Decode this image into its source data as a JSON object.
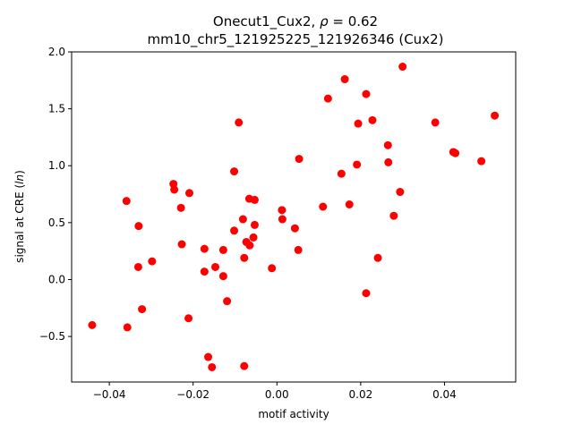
{
  "chart_data": {
    "type": "scatter",
    "title_line1": "Onecut1_Cux2, ρ = 0.62",
    "title_line2": "mm10_chr5_121925225_121926346 (Cux2)",
    "xlabel": "motif activity",
    "ylabel": "signal at CRE (ln)",
    "xlim": [
      -0.049,
      0.057
    ],
    "ylim": [
      -0.9,
      2.0
    ],
    "xticks": [
      -0.04,
      -0.02,
      0.0,
      0.02,
      0.04
    ],
    "xtick_labels": [
      "−0.04",
      "−0.02",
      "0.00",
      "0.02",
      "0.04"
    ],
    "yticks": [
      -0.5,
      0.0,
      0.5,
      1.0,
      1.5,
      2.0
    ],
    "ytick_labels": [
      "−0.5",
      "0.0",
      "0.5",
      "1.0",
      "1.5",
      "2.0"
    ],
    "grid": false,
    "marker_color": "#ff0000",
    "points": [
      {
        "x": -0.0441,
        "y": -0.4
      },
      {
        "x": -0.0359,
        "y": 0.69
      },
      {
        "x": -0.0357,
        "y": -0.42
      },
      {
        "x": -0.033,
        "y": 0.47
      },
      {
        "x": -0.0331,
        "y": 0.11
      },
      {
        "x": -0.0322,
        "y": -0.26
      },
      {
        "x": -0.0298,
        "y": 0.16
      },
      {
        "x": -0.0247,
        "y": 0.84
      },
      {
        "x": -0.0245,
        "y": 0.79
      },
      {
        "x": -0.0229,
        "y": 0.63
      },
      {
        "x": -0.0227,
        "y": 0.31
      },
      {
        "x": -0.0211,
        "y": -0.34
      },
      {
        "x": -0.0209,
        "y": 0.76
      },
      {
        "x": -0.0173,
        "y": 0.27
      },
      {
        "x": -0.0173,
        "y": 0.07
      },
      {
        "x": -0.0164,
        "y": -0.68
      },
      {
        "x": -0.0155,
        "y": -0.77
      },
      {
        "x": -0.0147,
        "y": 0.11
      },
      {
        "x": -0.0128,
        "y": 0.26
      },
      {
        "x": -0.0128,
        "y": 0.03
      },
      {
        "x": -0.0119,
        "y": -0.19
      },
      {
        "x": -0.0102,
        "y": 0.95
      },
      {
        "x": -0.0102,
        "y": 0.43
      },
      {
        "x": -0.0091,
        "y": 1.38
      },
      {
        "x": -0.0081,
        "y": 0.53
      },
      {
        "x": -0.0078,
        "y": 0.19
      },
      {
        "x": -0.0078,
        "y": -0.76
      },
      {
        "x": -0.0073,
        "y": 0.33
      },
      {
        "x": -0.0066,
        "y": 0.71
      },
      {
        "x": -0.0065,
        "y": 0.3
      },
      {
        "x": -0.0056,
        "y": 0.37
      },
      {
        "x": -0.0053,
        "y": 0.7
      },
      {
        "x": -0.0053,
        "y": 0.48
      },
      {
        "x": -0.0012,
        "y": 0.1
      },
      {
        "x": 0.0012,
        "y": 0.61
      },
      {
        "x": 0.0013,
        "y": 0.53
      },
      {
        "x": 0.0043,
        "y": 0.45
      },
      {
        "x": 0.0051,
        "y": 0.26
      },
      {
        "x": 0.0053,
        "y": 1.06
      },
      {
        "x": 0.011,
        "y": 0.64
      },
      {
        "x": 0.0122,
        "y": 1.59
      },
      {
        "x": 0.0154,
        "y": 0.93
      },
      {
        "x": 0.0162,
        "y": 1.76
      },
      {
        "x": 0.0173,
        "y": 0.66
      },
      {
        "x": 0.0191,
        "y": 1.01
      },
      {
        "x": 0.0194,
        "y": 1.37
      },
      {
        "x": 0.0213,
        "y": 1.63
      },
      {
        "x": 0.0213,
        "y": -0.12
      },
      {
        "x": 0.0228,
        "y": 1.4
      },
      {
        "x": 0.0241,
        "y": 0.19
      },
      {
        "x": 0.0265,
        "y": 1.18
      },
      {
        "x": 0.0266,
        "y": 1.03
      },
      {
        "x": 0.0279,
        "y": 0.56
      },
      {
        "x": 0.0294,
        "y": 0.77
      },
      {
        "x": 0.03,
        "y": 1.87
      },
      {
        "x": 0.0378,
        "y": 1.38
      },
      {
        "x": 0.0421,
        "y": 1.12
      },
      {
        "x": 0.0426,
        "y": 1.11
      },
      {
        "x": 0.0488,
        "y": 1.04
      },
      {
        "x": 0.052,
        "y": 1.44
      }
    ]
  }
}
